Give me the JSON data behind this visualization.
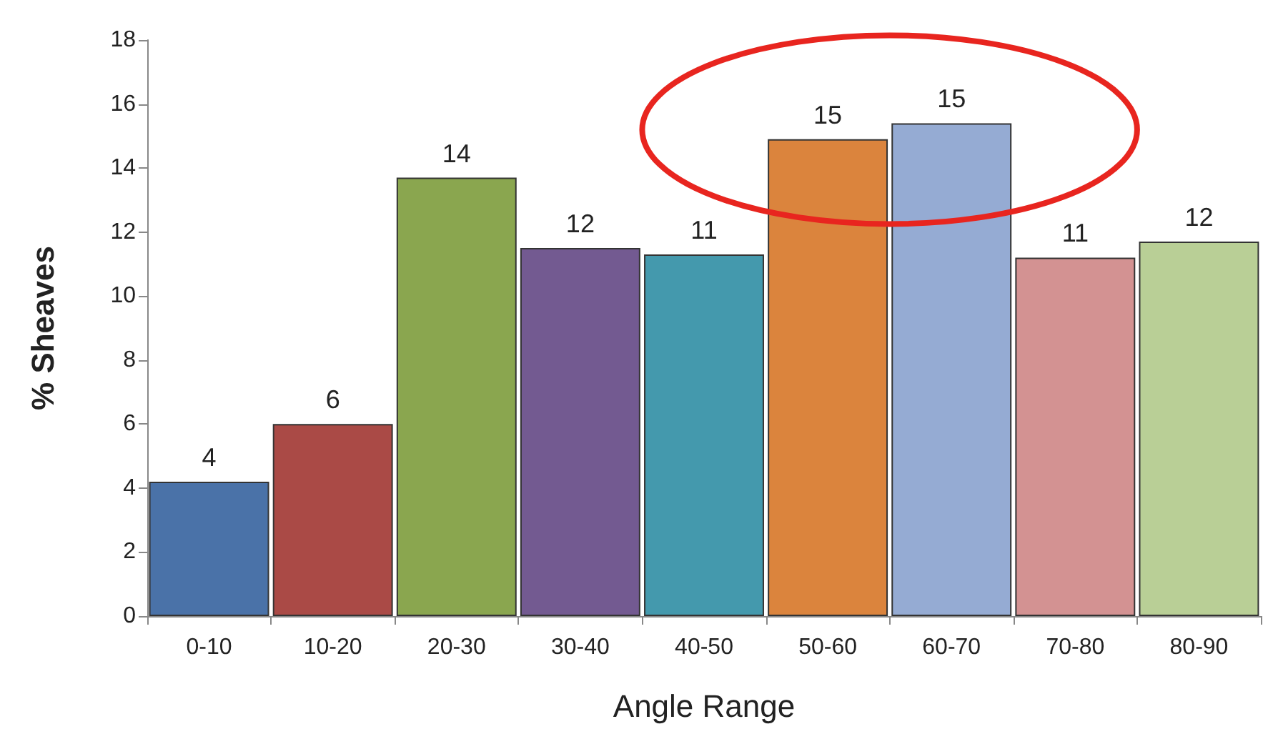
{
  "chart_data": {
    "type": "bar",
    "xlabel": "Angle Range",
    "ylabel": "% Sheaves",
    "categories": [
      "0-10",
      "10-20",
      "20-30",
      "30-40",
      "40-50",
      "50-60",
      "60-70",
      "70-80",
      "80-90"
    ],
    "values": [
      4.2,
      6.0,
      13.7,
      11.5,
      11.3,
      14.9,
      15.4,
      11.2,
      11.7
    ],
    "value_labels": [
      "4",
      "6",
      "14",
      "12",
      "11",
      "15",
      "15",
      "11",
      "12"
    ],
    "colors": [
      "#4a72a8",
      "#aa4a46",
      "#8aa64f",
      "#735a91",
      "#4499ad",
      "#db843d",
      "#95abd3",
      "#d39292",
      "#b9cf96"
    ],
    "ylim": [
      0,
      18
    ],
    "yticks": [
      0,
      2,
      4,
      6,
      8,
      10,
      12,
      14,
      16,
      18
    ],
    "grid": false
  }
}
